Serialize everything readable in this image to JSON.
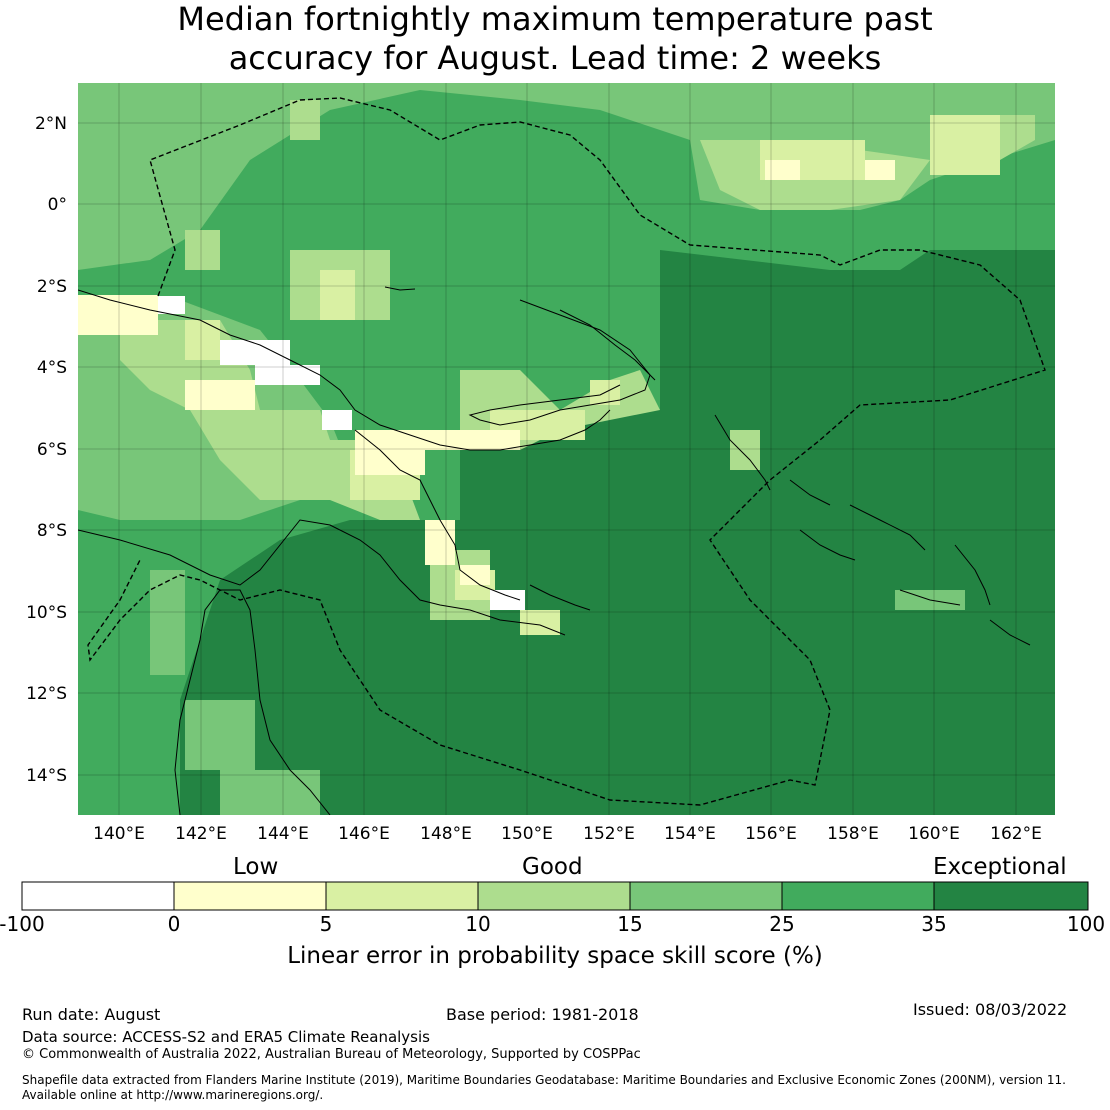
{
  "title_line1": "Median fortnightly maximum temperature past",
  "title_line2": "accuracy for August. Lead time: 2 weeks",
  "lon_ticks": [
    "140°E",
    "142°E",
    "144°E",
    "146°E",
    "148°E",
    "150°E",
    "152°E",
    "154°E",
    "156°E",
    "158°E",
    "160°E",
    "162°E"
  ],
  "lat_ticks": [
    "2°N",
    "0°",
    "2°S",
    "4°S",
    "6°S",
    "8°S",
    "10°S",
    "12°S",
    "14°S"
  ],
  "legend_words": {
    "low": "Low",
    "good": "Good",
    "exceptional": "Exceptional"
  },
  "colorbar": {
    "ticks": [
      "-100",
      "0",
      "5",
      "10",
      "15",
      "25",
      "35",
      "100"
    ],
    "colors": [
      "#ffffff",
      "#ffffcc",
      "#d9f0a3",
      "#addd8e",
      "#78c679",
      "#41ab5d",
      "#238443"
    ],
    "label": "Linear error in probability space skill score (%)"
  },
  "footer": {
    "run_date": "Run date: August",
    "base_period": "Base period: 1981-2018",
    "issued": "Issued: 08/03/2022",
    "data_source": "Data source: ACCESS-S2 and ERA5 Climate Reanalysis",
    "copyright": "© Commonwealth of Australia 2022, Australian Bureau of Meteorology, Supported by COSPPac",
    "shapefile_line1": "Shapefile data extracted from Flanders Marine Institute (2019), Maritime Boundaries Geodatabase: Maritime Boundaries and Exclusive Economic Zones (200NM), version 11.",
    "shapefile_line2": "Available online at http://www.marineregions.org/."
  }
}
